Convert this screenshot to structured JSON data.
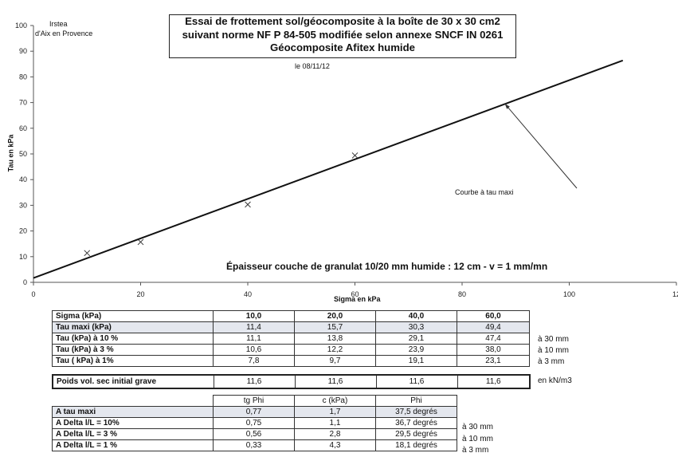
{
  "header": {
    "title_lines": [
      "Essai de frottement sol/géocomposite à la boîte de 30 x 30 cm2",
      "suivant norme NF P 84-505 modifiée selon annexe SNCF IN 0261",
      "Géocomposite Afitex humide"
    ],
    "org_line1": "Irstea",
    "org_line2": "d'Aix en Provence",
    "date": "le 08/11/12"
  },
  "chart_data": {
    "type": "scatter",
    "xlabel": "Sigma en kPa",
    "ylabel": "Tau en kPa",
    "xlim": [
      0,
      120
    ],
    "ylim": [
      0,
      100
    ],
    "x_ticks": [
      "0",
      "20",
      "40",
      "60",
      "80",
      "100",
      "12"
    ],
    "y_ticks": [
      "0",
      "10",
      "20",
      "30",
      "40",
      "50",
      "60",
      "70",
      "80",
      "90",
      "100"
    ],
    "grid": false,
    "series": [
      {
        "type": "scatter",
        "marker": "x",
        "points": [
          {
            "x": 10,
            "y": 11.4
          },
          {
            "x": 20,
            "y": 15.7
          },
          {
            "x": 40,
            "y": 30.3
          },
          {
            "x": 60,
            "y": 49.4
          }
        ]
      },
      {
        "type": "line",
        "points": [
          {
            "x": 0,
            "y": 1.7
          },
          {
            "x": 110,
            "y": 86.4
          }
        ]
      }
    ],
    "annotation": {
      "text": "Courbe à tau maxi",
      "arrow_to": {
        "x": 88,
        "y": 69.5
      }
    },
    "note": "Épaisseur couche de granulat 10/20 mm humide : 12  cm - v = 1 mm/mn"
  },
  "table1": {
    "header": [
      "Sigma (kPa)",
      "10,0",
      "20,0",
      "40,0",
      "60,0"
    ],
    "rows": [
      {
        "label": "Tau maxi (kPa)",
        "values": [
          "11,4",
          "15,7",
          "30,3",
          "49,4"
        ],
        "side": ""
      },
      {
        "label": "Tau (kPa) à 10 %",
        "values": [
          "11,1",
          "13,8",
          "29,1",
          "47,4"
        ],
        "side": "à 30 mm"
      },
      {
        "label": "Tau (kPa) à 3 %",
        "values": [
          "10,6",
          "12,2",
          "23,9",
          "38,0"
        ],
        "side": "à 10 mm"
      },
      {
        "label": " Tau  ( kPa) à 1%",
        "values": [
          "7,8",
          "9,7",
          "19,1",
          "23,1"
        ],
        "side": "à 3 mm"
      }
    ],
    "density": {
      "label": "Poids vol. sec initial grave",
      "values": [
        "11,6",
        "11,6",
        "11,6",
        "11,6"
      ],
      "side": "en kN/m3"
    }
  },
  "table2": {
    "header": [
      "",
      "tg Phi",
      "c (kPa)",
      "Phi"
    ],
    "rows": [
      {
        "label": "A tau maxi",
        "values": [
          "0,77",
          "1,7",
          "37,5 degrés"
        ],
        "side": ""
      },
      {
        "label": "A Delta l/L = 10%",
        "values": [
          "0,75",
          "1,1",
          "36,7 degrés"
        ],
        "side": "à  30 mm"
      },
      {
        "label": "A Delta l/L = 3 %",
        "values": [
          "0,56",
          "2,8",
          "29,5 degrés"
        ],
        "side": "à  10 mm"
      },
      {
        "label": "A Delta l/L = 1 %",
        "values": [
          "0,33",
          "4,3",
          "18,1 degrés"
        ],
        "side": "à  3 mm"
      }
    ]
  }
}
